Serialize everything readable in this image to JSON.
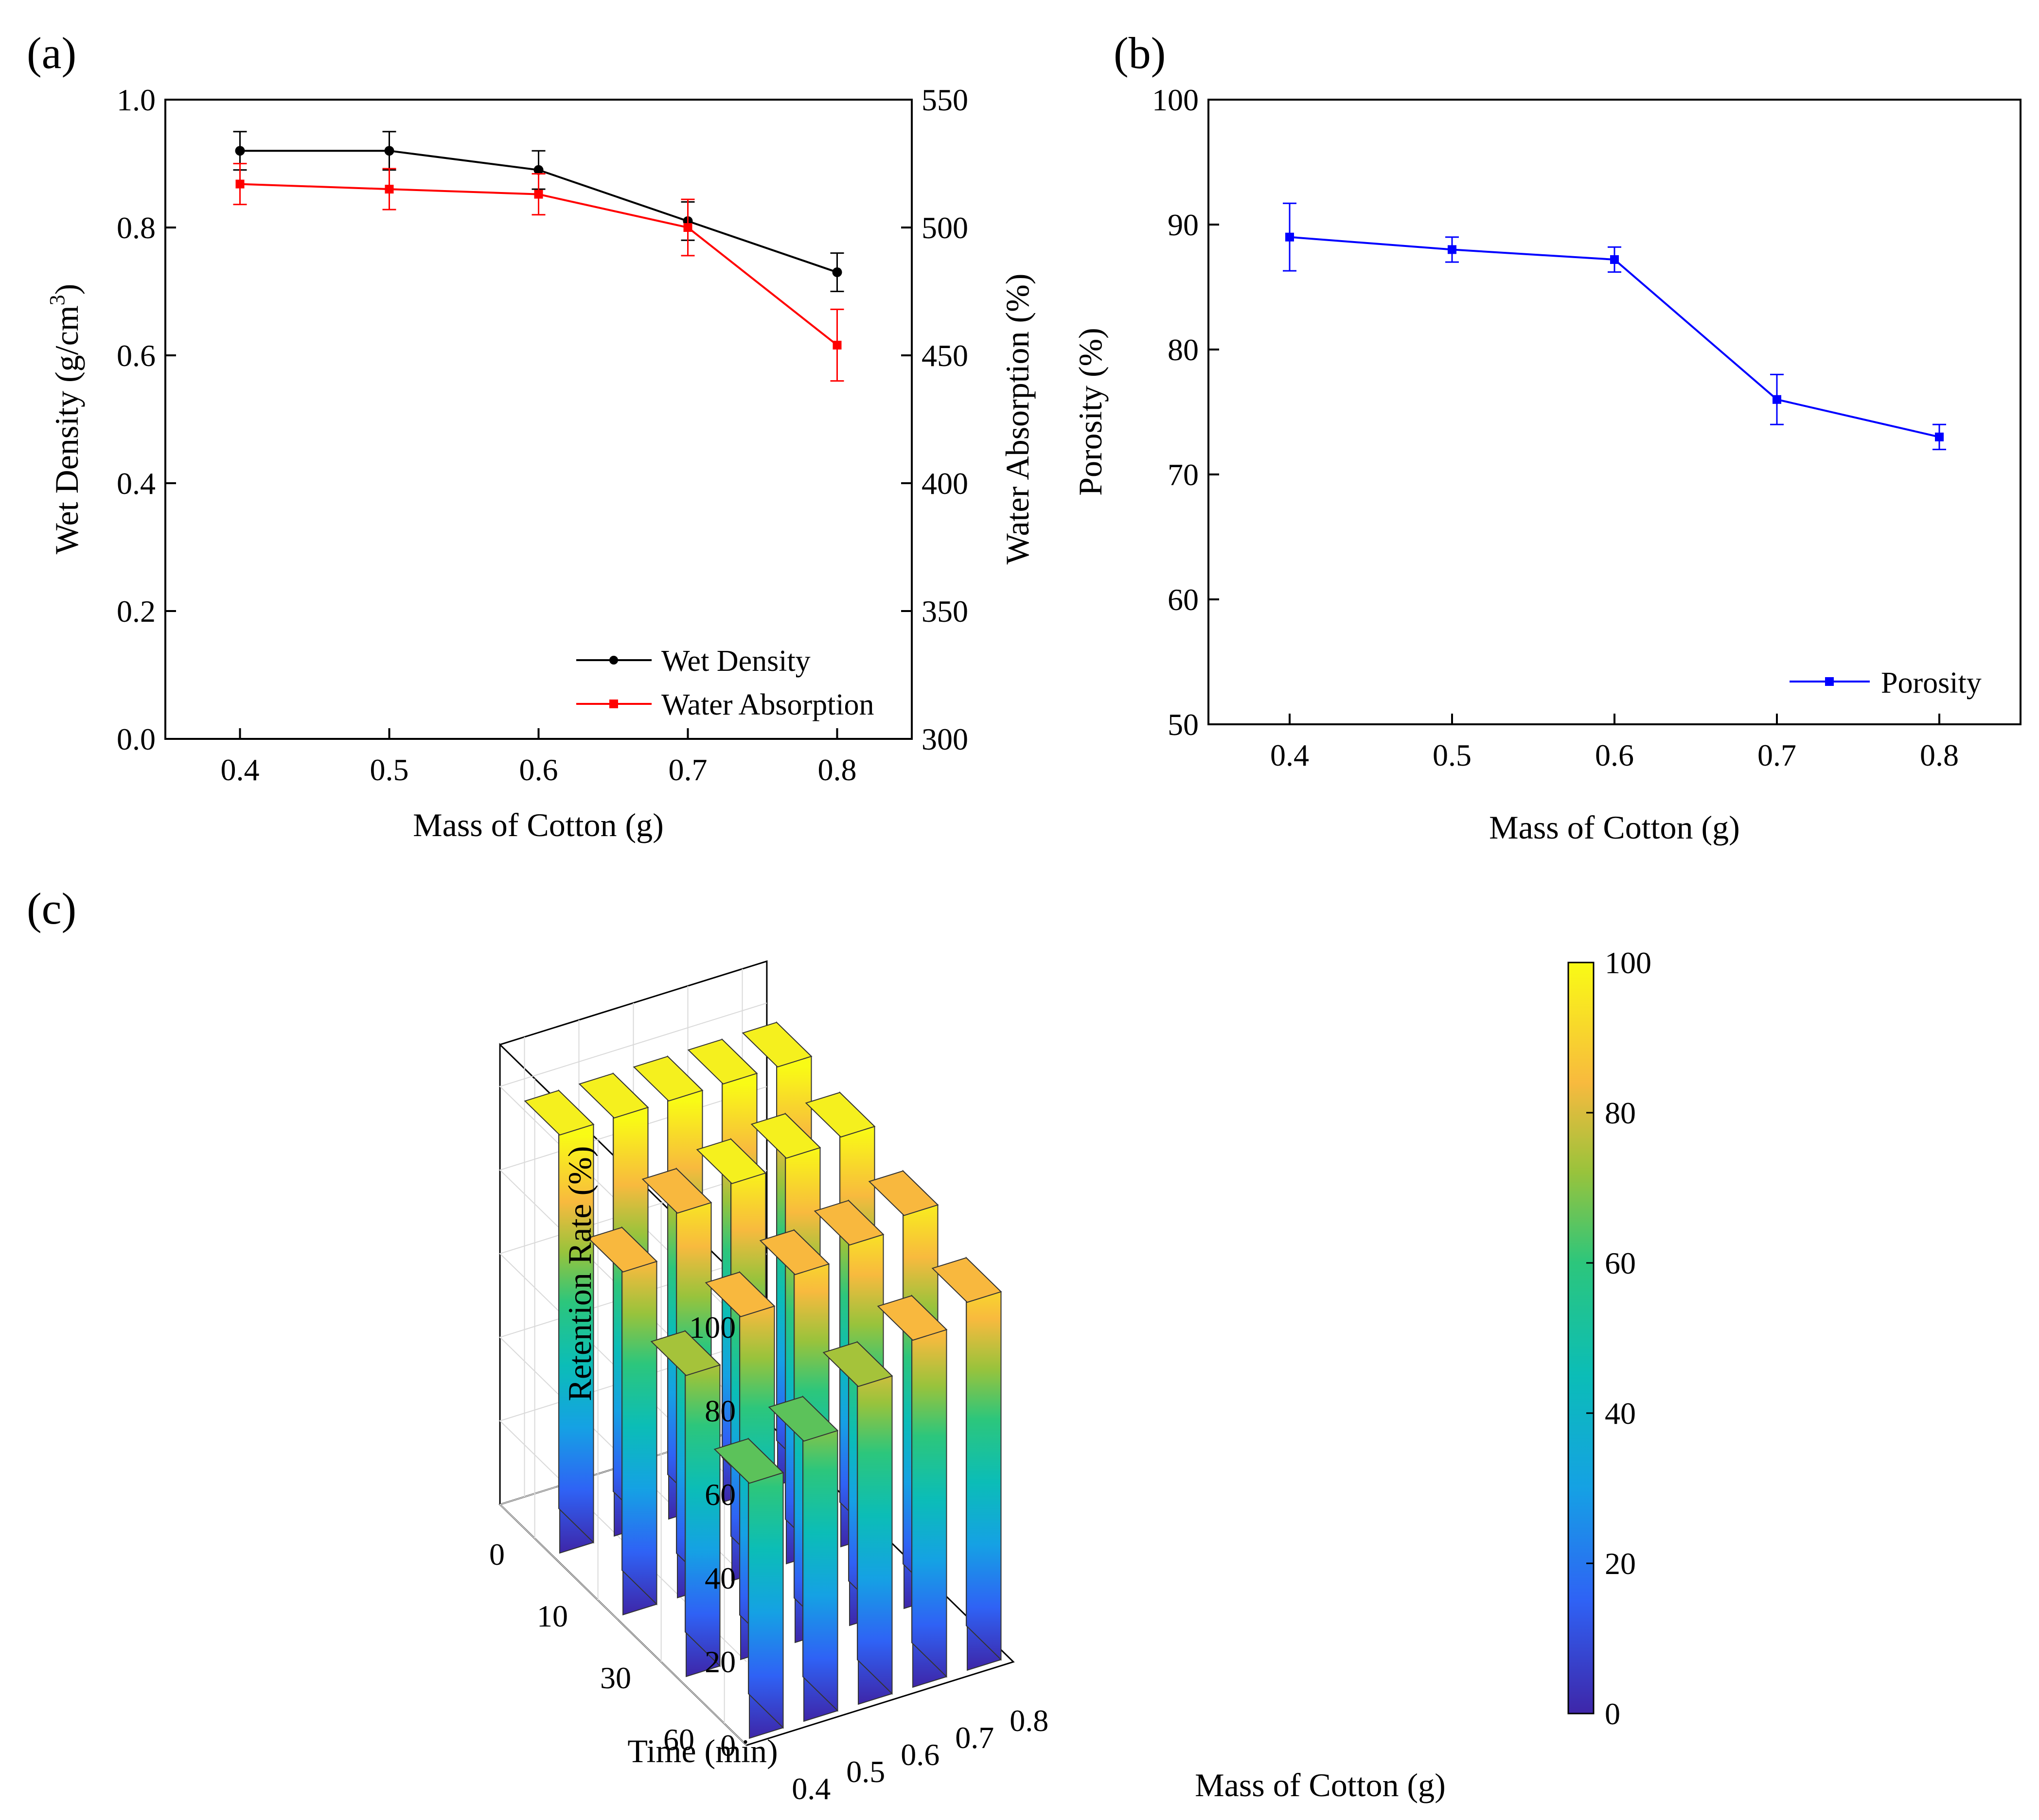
{
  "panels": {
    "a": {
      "label": "(a)"
    },
    "b": {
      "label": "(b)"
    },
    "c": {
      "label": "(c)"
    }
  },
  "chart_data": [
    {
      "id": "a",
      "type": "line",
      "xlabel": "Mass of Cotton (g)",
      "ylabel": "Wet Density (g/cm",
      "ylabel_sup": "3",
      "ylabel_end": ")",
      "y2label": "Water Absorption (%)",
      "x_ticks": [
        "0.4",
        "0.5",
        "0.6",
        "0.7",
        "0.8"
      ],
      "y_ticks": [
        "0.0",
        "0.2",
        "0.4",
        "0.6",
        "0.8",
        "1.0"
      ],
      "y2_ticks": [
        "300",
        "350",
        "400",
        "450",
        "500",
        "550"
      ],
      "xlim": [
        0.35,
        0.85
      ],
      "ylim": [
        0,
        1.0
      ],
      "y2lim": [
        300,
        550
      ],
      "legend_position": "bottom-right",
      "series": [
        {
          "name": "Wet Density",
          "axis": "left",
          "color": "#000000",
          "marker": "circle",
          "x": [
            0.4,
            0.5,
            0.6,
            0.7,
            0.8
          ],
          "y": [
            0.92,
            0.92,
            0.89,
            0.81,
            0.73
          ],
          "err": [
            0.03,
            0.03,
            0.03,
            0.03,
            0.03
          ]
        },
        {
          "name": "Water Absorption",
          "axis": "right",
          "color": "#ff0000",
          "marker": "square",
          "x": [
            0.4,
            0.5,
            0.6,
            0.7,
            0.8
          ],
          "y": [
            517,
            515,
            513,
            500,
            454
          ],
          "err": [
            8,
            8,
            8,
            11,
            14
          ]
        }
      ]
    },
    {
      "id": "b",
      "type": "line",
      "xlabel": "Mass of Cotton (g)",
      "ylabel": "Porosity (%)",
      "x_ticks": [
        "0.4",
        "0.5",
        "0.6",
        "0.7",
        "0.8"
      ],
      "y_ticks": [
        "50",
        "60",
        "70",
        "80",
        "90",
        "100"
      ],
      "xlim": [
        0.35,
        0.85
      ],
      "ylim": [
        50,
        100
      ],
      "legend_position": "bottom-right",
      "series": [
        {
          "name": "Porosity",
          "color": "#0000ff",
          "marker": "square",
          "x": [
            0.4,
            0.5,
            0.6,
            0.7,
            0.8
          ],
          "y": [
            89,
            88,
            87.2,
            76,
            73
          ],
          "err": [
            2.7,
            1.0,
            1.0,
            2.0,
            1.0
          ]
        }
      ]
    },
    {
      "id": "c",
      "type": "bar3d",
      "zlabel": "Retention Rate (%)",
      "xlabel": "Mass of Cotton (g)",
      "ylabel": "Time (min)",
      "mass_ticks": [
        "0.4",
        "0.5",
        "0.6",
        "0.7",
        "0.8"
      ],
      "time_ticks": [
        "0",
        "10",
        "30",
        "60"
      ],
      "z_ticks": [
        "0",
        "20",
        "40",
        "60",
        "80",
        "100"
      ],
      "zlim": [
        0,
        100
      ],
      "colorbar_ticks": [
        "0",
        "20",
        "40",
        "60",
        "80",
        "100"
      ],
      "colormap": "parula",
      "values": [
        [
          100,
          100,
          100,
          100,
          100
        ],
        [
          82,
          92,
          95,
          97,
          98
        ],
        [
          72,
          82,
          88,
          91,
          94
        ],
        [
          61,
          67,
          76,
          83,
          88
        ]
      ]
    }
  ]
}
